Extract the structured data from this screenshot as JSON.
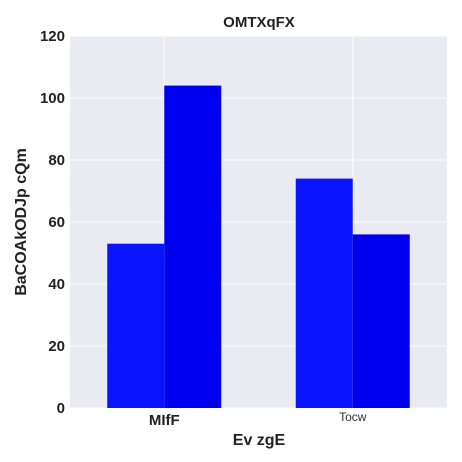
{
  "chart_data": {
    "type": "bar",
    "title": "OMTXqFX",
    "xlabel": "Ev zgE",
    "ylabel": "BaCOAkODJp cQm",
    "categories": [
      "MIfF",
      "Tocw"
    ],
    "series": [
      {
        "values": [
          53,
          74
        ],
        "color": "#0a14ff"
      },
      {
        "values": [
          104,
          56
        ],
        "color": "#0000f0"
      }
    ],
    "ylim": [
      0,
      120
    ],
    "yticks": [
      0,
      20,
      40,
      60,
      80,
      100,
      120
    ],
    "grid": true,
    "legend": "none",
    "background": "#eaeaf2"
  }
}
